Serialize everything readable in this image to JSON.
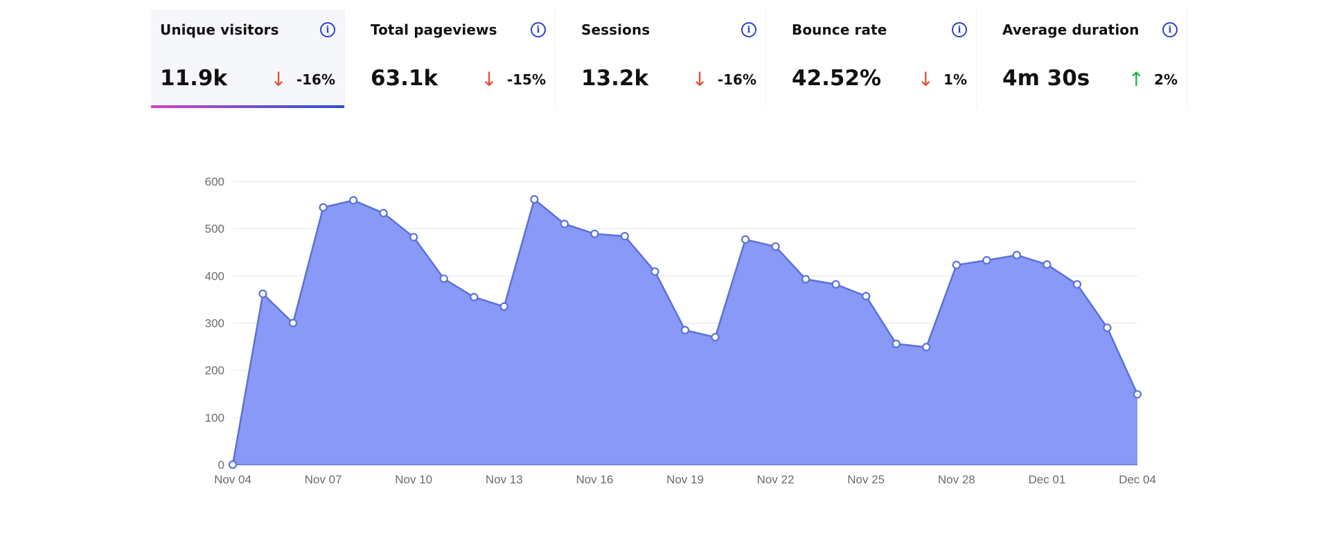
{
  "metrics": [
    {
      "label": "Unique visitors",
      "value": "11.9k",
      "change": "-16%",
      "direction": "down",
      "active": true
    },
    {
      "label": "Total pageviews",
      "value": "63.1k",
      "change": "-15%",
      "direction": "down",
      "active": false
    },
    {
      "label": "Sessions",
      "value": "13.2k",
      "change": "-16%",
      "direction": "down",
      "active": false
    },
    {
      "label": "Bounce rate",
      "value": "42.52%",
      "change": "1%",
      "direction": "down",
      "active": false
    },
    {
      "label": "Average duration",
      "value": "4m 30s",
      "change": "2%",
      "direction": "up",
      "active": false
    }
  ],
  "icons": {
    "info": "info-icon",
    "down": "arrow-down-icon",
    "up": "arrow-up-icon"
  },
  "colors": {
    "area_fill": "#8899f7",
    "line": "#5b70d6",
    "grid": "#e6e6e6",
    "down": "#e34d33",
    "up": "#22b140"
  },
  "chart_data": {
    "type": "area",
    "title": "",
    "xlabel": "",
    "ylabel": "",
    "ylim": [
      0,
      600
    ],
    "yticks": [
      0,
      100,
      200,
      300,
      400,
      500,
      600
    ],
    "xticks": [
      "Nov 04",
      "Nov 07",
      "Nov 10",
      "Nov 13",
      "Nov 16",
      "Nov 19",
      "Nov 22",
      "Nov 25",
      "Nov 28",
      "Dec 01",
      "Dec 04"
    ],
    "grid": true,
    "x": [
      "Nov 04",
      "Nov 05",
      "Nov 06",
      "Nov 07",
      "Nov 08",
      "Nov 09",
      "Nov 10",
      "Nov 11",
      "Nov 12",
      "Nov 13",
      "Nov 14",
      "Nov 15",
      "Nov 16",
      "Nov 17",
      "Nov 18",
      "Nov 19",
      "Nov 20",
      "Nov 21",
      "Nov 22",
      "Nov 23",
      "Nov 24",
      "Nov 25",
      "Nov 26",
      "Nov 27",
      "Nov 28",
      "Nov 29",
      "Nov 30",
      "Dec 01",
      "Dec 02",
      "Dec 03",
      "Dec 04"
    ],
    "series": [
      {
        "values": [
          0,
          362,
          300,
          545,
          560,
          533,
          482,
          394,
          355,
          335,
          562,
          510,
          489,
          484,
          409,
          285,
          270,
          477,
          462,
          393,
          382,
          357,
          256,
          249,
          423,
          433,
          444,
          424,
          382,
          290,
          149
        ]
      }
    ]
  }
}
